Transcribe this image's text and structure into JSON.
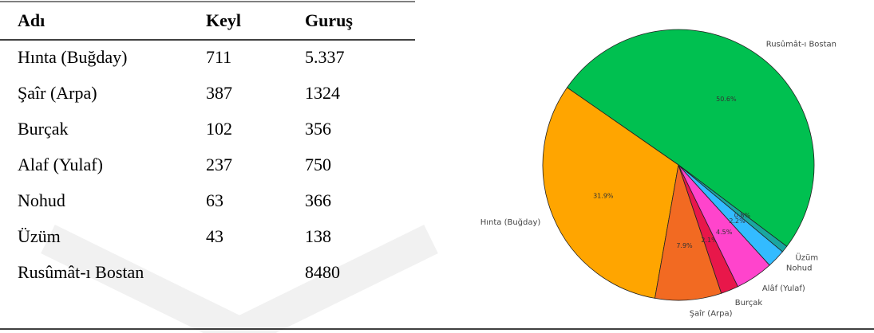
{
  "table": {
    "header": [
      "Adı",
      "Keyl",
      "Guruş"
    ],
    "rows": [
      {
        "name": "Hınta (Buğday)",
        "keyl": "711",
        "gurus": "5.337"
      },
      {
        "name": "Şaîr (Arpa)",
        "keyl": "387",
        "gurus": "1324"
      },
      {
        "name": "Burçak",
        "keyl": "102",
        "gurus": "356"
      },
      {
        "name": "Alaf (Yulaf)",
        "keyl": "237",
        "gurus": "750"
      },
      {
        "name": "Nohud",
        "keyl": "63",
        "gurus": "366"
      },
      {
        "name": "Üzüm",
        "keyl": "43",
        "gurus": "138"
      },
      {
        "name": "Rusûmât-ı Bostan",
        "gurus": "8480"
      }
    ]
  },
  "chart_data": {
    "type": "pie",
    "categories": [
      "Rusûmât-ı Bostan",
      "Hınta (Buğday)",
      "Şaîr (Arpa)",
      "Burçak",
      "Alâf (Yulaf)",
      "Nohud",
      "Üzüm"
    ],
    "values": [
      50.6,
      31.9,
      7.9,
      2.1,
      4.5,
      2.2,
      0.8
    ],
    "value_labels": [
      "50.6%",
      "31.9%",
      "7.9%",
      "2.1%",
      "4.5%",
      "2.2%",
      "0.8%"
    ],
    "colors": [
      "#00c050",
      "#ffa500",
      "#f26a22",
      "#e8174a",
      "#ff44cc",
      "#33bbff",
      "#1aa6a0"
    ]
  }
}
